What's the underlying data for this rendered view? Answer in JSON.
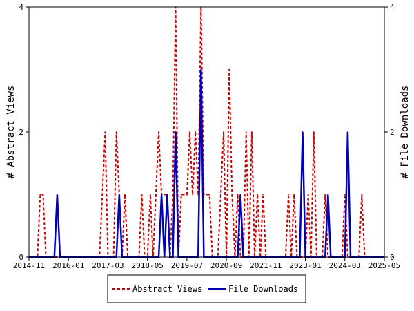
{
  "chart_data": {
    "type": "line",
    "xlabel": "",
    "ylabel_left": "# Abstract Views",
    "ylabel_right": "# File Downloads",
    "ylim_left": [
      0,
      4
    ],
    "ylim_right": [
      0,
      4
    ],
    "y_ticks_left": [
      "0",
      "2",
      "4"
    ],
    "y_ticks_right": [
      "0",
      "2",
      "4"
    ],
    "x_ticks": [
      {
        "label": "2014-11",
        "value": "2014-11"
      },
      {
        "label": "2016-01",
        "value": "2016-01"
      },
      {
        "label": "2017-03",
        "value": "2017-03"
      },
      {
        "label": "2018-05",
        "value": "2018-05"
      },
      {
        "label": "2019-07",
        "value": "2019-07"
      },
      {
        "label": "2020-09",
        "value": "2020-09"
      },
      {
        "label": "2021-11",
        "value": "2021-11"
      },
      {
        "label": "2023-01",
        "value": "2023-01"
      },
      {
        "label": "2024-03",
        "value": "2024-03"
      },
      {
        "label": "2025-05",
        "value": "2025-05"
      }
    ],
    "x_range": [
      "2014-11",
      "2025-05"
    ],
    "grid": false,
    "legend_position": "bottom-center",
    "series": [
      {
        "name": "Abstract Views",
        "color": "#cc0000",
        "axis": "left",
        "style": "dashed",
        "points": [
          [
            "2014-11",
            0
          ],
          [
            "2014-12",
            0
          ],
          [
            "2015-01",
            0
          ],
          [
            "2015-02",
            0
          ],
          [
            "2015-03",
            1
          ],
          [
            "2015-04",
            1
          ],
          [
            "2015-05",
            0
          ],
          [
            "2015-06",
            0
          ],
          [
            "2015-07",
            0
          ],
          [
            "2015-08",
            0
          ],
          [
            "2015-09",
            0
          ],
          [
            "2015-10",
            0
          ],
          [
            "2015-11",
            0
          ],
          [
            "2015-12",
            0
          ],
          [
            "2016-01",
            0
          ],
          [
            "2016-02",
            0
          ],
          [
            "2016-03",
            0
          ],
          [
            "2016-04",
            0
          ],
          [
            "2016-05",
            0
          ],
          [
            "2016-06",
            0
          ],
          [
            "2016-07",
            0
          ],
          [
            "2016-08",
            0
          ],
          [
            "2016-09",
            0
          ],
          [
            "2016-10",
            0
          ],
          [
            "2016-11",
            0
          ],
          [
            "2016-12",
            0
          ],
          [
            "2017-01",
            1
          ],
          [
            "2017-02",
            2
          ],
          [
            "2017-03",
            0
          ],
          [
            "2017-04",
            0
          ],
          [
            "2017-05",
            0
          ],
          [
            "2017-06",
            2
          ],
          [
            "2017-07",
            1
          ],
          [
            "2017-08",
            0
          ],
          [
            "2017-09",
            1
          ],
          [
            "2017-10",
            0
          ],
          [
            "2017-11",
            0
          ],
          [
            "2017-12",
            0
          ],
          [
            "2018-01",
            0
          ],
          [
            "2018-02",
            0
          ],
          [
            "2018-03",
            1
          ],
          [
            "2018-04",
            0
          ],
          [
            "2018-05",
            0
          ],
          [
            "2018-06",
            1
          ],
          [
            "2018-07",
            0
          ],
          [
            "2018-08",
            1
          ],
          [
            "2018-09",
            2
          ],
          [
            "2018-10",
            1
          ],
          [
            "2018-11",
            1
          ],
          [
            "2018-12",
            1
          ],
          [
            "2019-01",
            0
          ],
          [
            "2019-02",
            1
          ],
          [
            "2019-03",
            4
          ],
          [
            "2019-04",
            0
          ],
          [
            "2019-05",
            1
          ],
          [
            "2019-06",
            1
          ],
          [
            "2019-07",
            1
          ],
          [
            "2019-08",
            2
          ],
          [
            "2019-09",
            1
          ],
          [
            "2019-10",
            2
          ],
          [
            "2019-11",
            1
          ],
          [
            "2019-12",
            4
          ],
          [
            "2020-01",
            1
          ],
          [
            "2020-02",
            1
          ],
          [
            "2020-03",
            1
          ],
          [
            "2020-04",
            0
          ],
          [
            "2020-05",
            0
          ],
          [
            "2020-06",
            0
          ],
          [
            "2020-07",
            1
          ],
          [
            "2020-08",
            2
          ],
          [
            "2020-09",
            0
          ],
          [
            "2020-10",
            3
          ],
          [
            "2020-11",
            1
          ],
          [
            "2020-12",
            0
          ],
          [
            "2021-01",
            1
          ],
          [
            "2021-02",
            0
          ],
          [
            "2021-03",
            0
          ],
          [
            "2021-04",
            2
          ],
          [
            "2021-05",
            0
          ],
          [
            "2021-06",
            2
          ],
          [
            "2021-07",
            0
          ],
          [
            "2021-08",
            1
          ],
          [
            "2021-09",
            0
          ],
          [
            "2021-10",
            1
          ],
          [
            "2021-11",
            0
          ],
          [
            "2021-12",
            0
          ],
          [
            "2022-01",
            0
          ],
          [
            "2022-02",
            0
          ],
          [
            "2022-03",
            0
          ],
          [
            "2022-04",
            0
          ],
          [
            "2022-05",
            0
          ],
          [
            "2022-06",
            0
          ],
          [
            "2022-07",
            1
          ],
          [
            "2022-08",
            0
          ],
          [
            "2022-09",
            1
          ],
          [
            "2022-10",
            0
          ],
          [
            "2022-11",
            0
          ],
          [
            "2022-12",
            0
          ],
          [
            "2023-01",
            0
          ],
          [
            "2023-02",
            1
          ],
          [
            "2023-03",
            0
          ],
          [
            "2023-04",
            2
          ],
          [
            "2023-05",
            0
          ],
          [
            "2023-06",
            0
          ],
          [
            "2023-07",
            0
          ],
          [
            "2023-08",
            1
          ],
          [
            "2023-09",
            0
          ],
          [
            "2023-10",
            0
          ],
          [
            "2023-11",
            0
          ],
          [
            "2023-12",
            0
          ],
          [
            "2024-01",
            0
          ],
          [
            "2024-02",
            0
          ],
          [
            "2024-03",
            1
          ],
          [
            "2024-04",
            0
          ],
          [
            "2024-05",
            0
          ],
          [
            "2024-06",
            0
          ],
          [
            "2024-07",
            0
          ],
          [
            "2024-08",
            0
          ],
          [
            "2024-09",
            1
          ],
          [
            "2024-10",
            0
          ],
          [
            "2024-11",
            0
          ],
          [
            "2024-12",
            0
          ],
          [
            "2025-01",
            0
          ],
          [
            "2025-02",
            0
          ],
          [
            "2025-03",
            0
          ],
          [
            "2025-04",
            0
          ],
          [
            "2025-05",
            0
          ]
        ]
      },
      {
        "name": "File Downloads",
        "color": "#0000bb",
        "axis": "right",
        "style": "solid",
        "points": [
          [
            "2014-11",
            0
          ],
          [
            "2014-12",
            0
          ],
          [
            "2015-01",
            0
          ],
          [
            "2015-02",
            0
          ],
          [
            "2015-03",
            0
          ],
          [
            "2015-04",
            0
          ],
          [
            "2015-05",
            0
          ],
          [
            "2015-06",
            0
          ],
          [
            "2015-07",
            0
          ],
          [
            "2015-08",
            0
          ],
          [
            "2015-09",
            1
          ],
          [
            "2015-10",
            0
          ],
          [
            "2015-11",
            0
          ],
          [
            "2015-12",
            0
          ],
          [
            "2016-01",
            0
          ],
          [
            "2016-02",
            0
          ],
          [
            "2016-03",
            0
          ],
          [
            "2016-04",
            0
          ],
          [
            "2016-05",
            0
          ],
          [
            "2016-06",
            0
          ],
          [
            "2016-07",
            0
          ],
          [
            "2016-08",
            0
          ],
          [
            "2016-09",
            0
          ],
          [
            "2016-10",
            0
          ],
          [
            "2016-11",
            0
          ],
          [
            "2016-12",
            0
          ],
          [
            "2017-01",
            0
          ],
          [
            "2017-02",
            0
          ],
          [
            "2017-03",
            0
          ],
          [
            "2017-04",
            0
          ],
          [
            "2017-05",
            0
          ],
          [
            "2017-06",
            0
          ],
          [
            "2017-07",
            1
          ],
          [
            "2017-08",
            0
          ],
          [
            "2017-09",
            0
          ],
          [
            "2017-10",
            0
          ],
          [
            "2017-11",
            0
          ],
          [
            "2017-12",
            0
          ],
          [
            "2018-01",
            0
          ],
          [
            "2018-02",
            0
          ],
          [
            "2018-03",
            0
          ],
          [
            "2018-04",
            0
          ],
          [
            "2018-05",
            0
          ],
          [
            "2018-06",
            0
          ],
          [
            "2018-07",
            0
          ],
          [
            "2018-08",
            0
          ],
          [
            "2018-09",
            0
          ],
          [
            "2018-10",
            1
          ],
          [
            "2018-11",
            0
          ],
          [
            "2018-12",
            1
          ],
          [
            "2019-01",
            0
          ],
          [
            "2019-02",
            0
          ],
          [
            "2019-03",
            2
          ],
          [
            "2019-04",
            0
          ],
          [
            "2019-05",
            0
          ],
          [
            "2019-06",
            0
          ],
          [
            "2019-07",
            0
          ],
          [
            "2019-08",
            0
          ],
          [
            "2019-09",
            0
          ],
          [
            "2019-10",
            0
          ],
          [
            "2019-11",
            0
          ],
          [
            "2019-12",
            3
          ],
          [
            "2020-01",
            0
          ],
          [
            "2020-02",
            0
          ],
          [
            "2020-03",
            0
          ],
          [
            "2020-04",
            0
          ],
          [
            "2020-05",
            0
          ],
          [
            "2020-06",
            0
          ],
          [
            "2020-07",
            0
          ],
          [
            "2020-08",
            0
          ],
          [
            "2020-09",
            0
          ],
          [
            "2020-10",
            0
          ],
          [
            "2020-11",
            0
          ],
          [
            "2020-12",
            0
          ],
          [
            "2021-01",
            0
          ],
          [
            "2021-02",
            1
          ],
          [
            "2021-03",
            0
          ],
          [
            "2021-04",
            0
          ],
          [
            "2021-05",
            0
          ],
          [
            "2021-06",
            0
          ],
          [
            "2021-07",
            0
          ],
          [
            "2021-08",
            0
          ],
          [
            "2021-09",
            0
          ],
          [
            "2021-10",
            0
          ],
          [
            "2021-11",
            0
          ],
          [
            "2021-12",
            0
          ],
          [
            "2022-01",
            0
          ],
          [
            "2022-02",
            0
          ],
          [
            "2022-03",
            0
          ],
          [
            "2022-04",
            0
          ],
          [
            "2022-05",
            0
          ],
          [
            "2022-06",
            0
          ],
          [
            "2022-07",
            0
          ],
          [
            "2022-08",
            0
          ],
          [
            "2022-09",
            0
          ],
          [
            "2022-10",
            0
          ],
          [
            "2022-11",
            0
          ],
          [
            "2022-12",
            2
          ],
          [
            "2023-01",
            0
          ],
          [
            "2023-02",
            0
          ],
          [
            "2023-03",
            0
          ],
          [
            "2023-04",
            0
          ],
          [
            "2023-05",
            0
          ],
          [
            "2023-06",
            0
          ],
          [
            "2023-07",
            0
          ],
          [
            "2023-08",
            0
          ],
          [
            "2023-09",
            1
          ],
          [
            "2023-10",
            0
          ],
          [
            "2023-11",
            0
          ],
          [
            "2023-12",
            0
          ],
          [
            "2024-01",
            0
          ],
          [
            "2024-02",
            0
          ],
          [
            "2024-03",
            0
          ],
          [
            "2024-04",
            2
          ],
          [
            "2024-05",
            0
          ],
          [
            "2024-06",
            0
          ],
          [
            "2024-07",
            0
          ],
          [
            "2024-08",
            0
          ],
          [
            "2024-09",
            0
          ],
          [
            "2024-10",
            0
          ],
          [
            "2024-11",
            0
          ],
          [
            "2024-12",
            0
          ],
          [
            "2025-01",
            0
          ],
          [
            "2025-02",
            0
          ],
          [
            "2025-03",
            0
          ],
          [
            "2025-04",
            0
          ],
          [
            "2025-05",
            0
          ]
        ]
      }
    ]
  }
}
